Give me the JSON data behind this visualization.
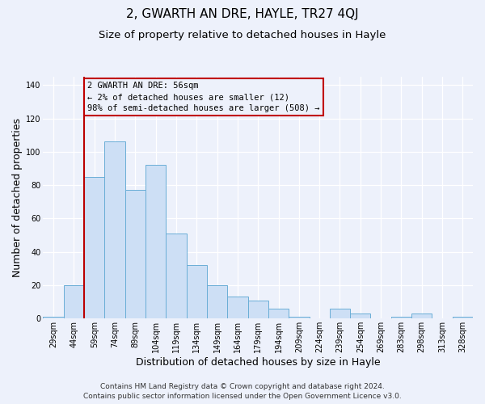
{
  "title": "2, GWARTH AN DRE, HAYLE, TR27 4QJ",
  "subtitle": "Size of property relative to detached houses in Hayle",
  "xlabel": "Distribution of detached houses by size in Hayle",
  "ylabel": "Number of detached properties",
  "categories": [
    "29sqm",
    "44sqm",
    "59sqm",
    "74sqm",
    "89sqm",
    "104sqm",
    "119sqm",
    "134sqm",
    "149sqm",
    "164sqm",
    "179sqm",
    "194sqm",
    "209sqm",
    "224sqm",
    "239sqm",
    "254sqm",
    "269sqm",
    "283sqm",
    "298sqm",
    "313sqm",
    "328sqm"
  ],
  "values": [
    1,
    20,
    85,
    106,
    77,
    92,
    51,
    32,
    20,
    13,
    11,
    6,
    1,
    0,
    6,
    3,
    0,
    1,
    3,
    0,
    1
  ],
  "bar_color": "#cddff5",
  "bar_edge_color": "#6aaed6",
  "redline_index": 2,
  "annotation_line1": "2 GWARTH AN DRE: 56sqm",
  "annotation_line2": "← 2% of detached houses are smaller (12)",
  "annotation_line3": "98% of semi-detached houses are larger (508) →",
  "annotation_box_edgecolor": "#c00000",
  "ylim": [
    0,
    145
  ],
  "yticks": [
    0,
    20,
    40,
    60,
    80,
    100,
    120,
    140
  ],
  "background_color": "#edf1fb",
  "grid_color": "#ffffff",
  "title_fontsize": 11,
  "subtitle_fontsize": 9.5,
  "axis_label_fontsize": 9,
  "tick_fontsize": 7,
  "annotation_fontsize": 7.5,
  "footer_fontsize": 6.5,
  "footer_line1": "Contains HM Land Registry data © Crown copyright and database right 2024.",
  "footer_line2": "Contains public sector information licensed under the Open Government Licence v3.0."
}
